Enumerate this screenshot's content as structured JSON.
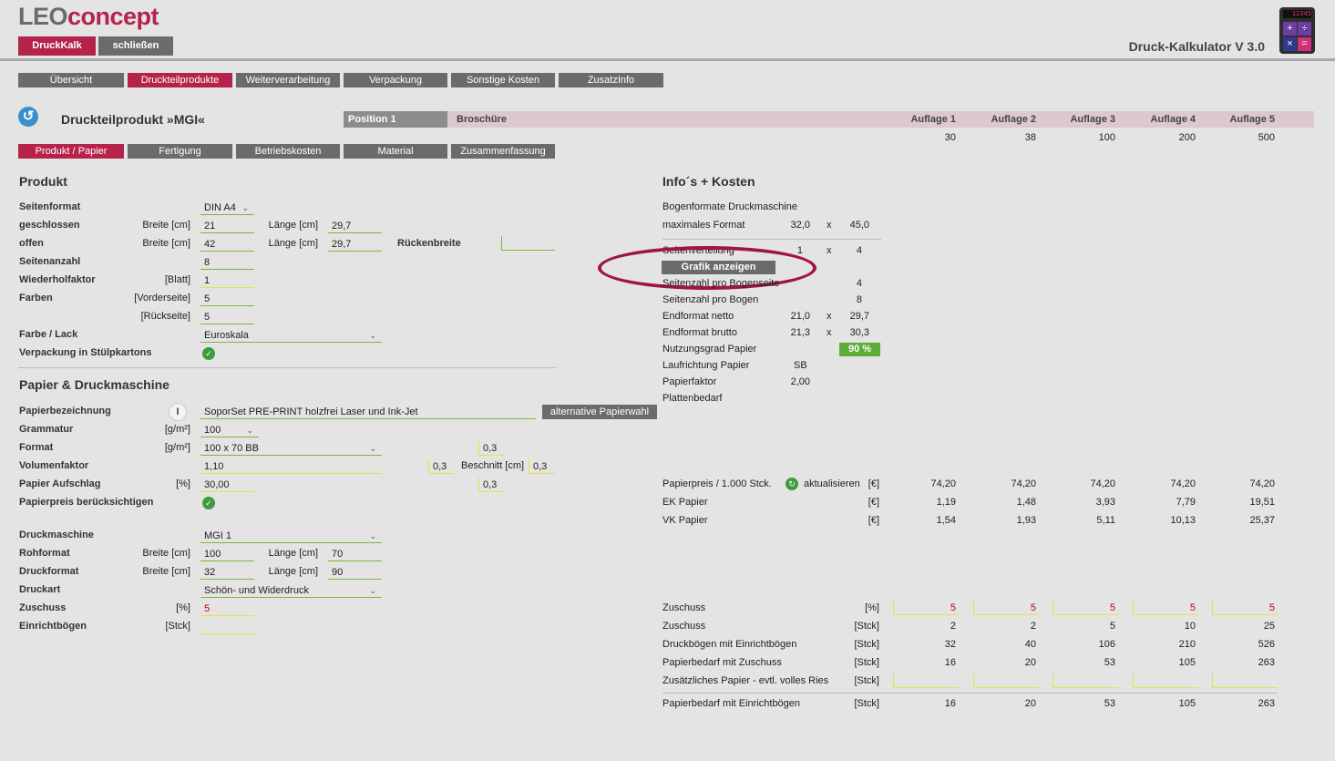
{
  "header": {
    "logo": {
      "part1": "LEO",
      "part2": "concept"
    },
    "btn_druckkalk": "DruckKalk",
    "btn_schliessen": "schließen",
    "app_title": "Druck-Kalkulator V 3.0",
    "calc_display": "12345",
    "calc_keys": [
      "+",
      "÷",
      "×",
      "="
    ]
  },
  "main_tabs": [
    "Übersicht",
    "Druckteilprodukte",
    "Weiterverarbeitung",
    "Verpackung",
    "Sonstige Kosten",
    "ZusatzInfo"
  ],
  "product": {
    "title": "Druckteilprodukt »MGI«",
    "position": "Position 1",
    "type": "Broschüre",
    "auflage_labels": [
      "Auflage 1",
      "Auflage 2",
      "Auflage 3",
      "Auflage 4",
      "Auflage 5"
    ],
    "auflage_values": [
      "30",
      "38",
      "100",
      "200",
      "500"
    ]
  },
  "sub_tabs": [
    "Produkt / Papier",
    "Fertigung",
    "Betriebskosten",
    "Material",
    "Zusammenfassung"
  ],
  "produkt": {
    "heading": "Produkt",
    "seitenformat_label": "Seitenformat",
    "seitenformat_value": "DIN A4",
    "geschlossen_label": "geschlossen",
    "offen_label": "offen",
    "breite_label": "Breite [cm]",
    "laenge_label": "Länge [cm]",
    "geschlossen_breite": "21",
    "geschlossen_laenge": "29,7",
    "offen_breite": "42",
    "offen_laenge": "29,7",
    "rueckenbreite_label": "Rückenbreite",
    "seitenanzahl_label": "Seitenanzahl",
    "seitenanzahl": "8",
    "wiederholfaktor_label": "Wiederholfaktor",
    "blatt_label": "[Blatt]",
    "wiederholfaktor": "1",
    "farben_label": "Farben",
    "vorderseite_label": "[Vorderseite]",
    "vorderseite": "5",
    "rueckseite_label": "[Rückseite]",
    "rueckseite": "5",
    "farbe_lack_label": "Farbe / Lack",
    "farbe_lack": "Euroskala",
    "verpackung_label": "Verpackung in Stülpkartons"
  },
  "papier": {
    "heading": "Papier & Druckmaschine",
    "bezeichnung_label": "Papierbezeichnung",
    "bezeichnung": "SoporSet PRE-PRINT holzfrei Laser und Ink-Jet",
    "alt_button": "alternative Papierwahl",
    "grammatur_label": "Grammatur",
    "gm2_label": "[g/m²]",
    "grammatur": "100",
    "format_label": "Format",
    "format": "100 x 70 BB",
    "format_side": "0,3",
    "volumen_label": "Volumenfaktor",
    "volumen": "1,10",
    "volumen_side": "0,3",
    "beschnitt_label": "Beschnitt [cm]",
    "beschnitt": "0,3",
    "aufschlag_label": "Papier Aufschlag",
    "pct_label": "[%]",
    "aufschlag": "30,00",
    "aufschlag_side": "0,3",
    "beruecksichtigen_label": "Papierpreis berücksichtigen",
    "druckmaschine_label": "Druckmaschine",
    "druckmaschine": "MGI 1",
    "rohformat_label": "Rohformat",
    "rohformat_breite": "100",
    "rohformat_laenge": "70",
    "druckformat_label": "Druckformat",
    "druckformat_breite": "32",
    "druckformat_laenge": "90",
    "druckart_label": "Druckart",
    "druckart": "Schön- und Widerdruck",
    "zuschuss_label": "Zuschuss",
    "zuschuss": "5",
    "einrichtboegen_label": "Einrichtbögen",
    "stck_label": "[Stck]"
  },
  "info": {
    "heading": "Info´s + Kosten",
    "bogenformate": "Bogenformate Druckmaschine",
    "max_format_label": "maximales Format",
    "max_format_a": "32,0",
    "max_format_b": "45,0",
    "x": "x",
    "seitenverteilung_label": "Seitenverteilung",
    "seitenverteilung_a": "1",
    "seitenverteilung_b": "4",
    "grafik_button": "Grafik anzeigen",
    "seitenzahl_bogenseite_label": "Seitenzahl pro Bogenseite",
    "seitenzahl_bogenseite": "4",
    "seitenzahl_bogen_label": "Seitenzahl pro Bogen",
    "seitenzahl_bogen": "8",
    "endformat_netto_label": "Endformat netto",
    "endformat_netto_a": "21,0",
    "endformat_netto_b": "29,7",
    "endformat_brutto_label": "Endformat brutto",
    "endformat_brutto_a": "21,3",
    "endformat_brutto_b": "30,3",
    "nutzungsgrad_label": "Nutzungsgrad Papier",
    "nutzungsgrad": "90 %",
    "laufrichtung_label": "Laufrichtung Papier",
    "laufrichtung": "SB",
    "papierfaktor_label": "Papierfaktor",
    "papierfaktor": "2,00",
    "plattenbedarf_label": "Plattenbedarf"
  },
  "costs": {
    "papierpreis_label": "Papierpreis / 1.000 Stck.",
    "aktualisieren": "aktualisieren",
    "eur": "[€]",
    "papierpreis": [
      "74,20",
      "74,20",
      "74,20",
      "74,20",
      "74,20"
    ],
    "ek_label": "EK Papier",
    "ek": [
      "1,19",
      "1,48",
      "3,93",
      "7,79",
      "19,51"
    ],
    "vk_label": "VK Papier",
    "vk": [
      "1,54",
      "1,93",
      "5,11",
      "10,13",
      "25,37"
    ]
  },
  "bottom": {
    "zuschuss_pct_label": "Zuschuss",
    "pct": "[%]",
    "zuschuss_pct": [
      "5",
      "5",
      "5",
      "5",
      "5"
    ],
    "zuschuss_stck_label": "Zuschuss",
    "stck": "[Stck]",
    "zuschuss_stck": [
      "2",
      "2",
      "5",
      "10",
      "25"
    ],
    "druckboegen_label": "Druckbögen mit Einrichtbögen",
    "druckboegen": [
      "32",
      "40",
      "106",
      "210",
      "526"
    ],
    "papierbedarf_zuschuss_label": "Papierbedarf mit Zuschuss",
    "papierbedarf_zuschuss": [
      "16",
      "20",
      "53",
      "105",
      "263"
    ],
    "zusaetzlich_label": "Zusätzliches Papier - evtl. volles Ries",
    "papierbedarf_einricht_label": "Papierbedarf mit Einrichtbögen",
    "papierbedarf_einricht": [
      "16",
      "20",
      "53",
      "105",
      "263"
    ]
  },
  "colors": {
    "brand": "#b5234b",
    "grey": "#6b6b6b",
    "green": "#7ab83a",
    "yellow": "#e7e04a"
  }
}
